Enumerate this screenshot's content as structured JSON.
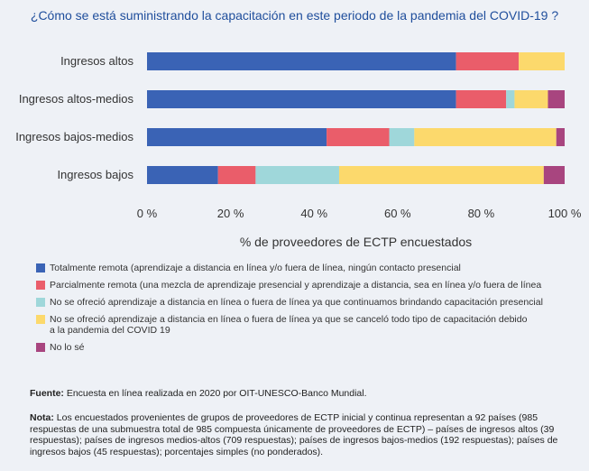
{
  "chart_data": {
    "type": "bar",
    "orientation": "horizontal",
    "stacked": true,
    "title": "¿Cómo se está suministrando la capacitación en este periodo de la pandemia del COVID-19 ?",
    "xlabel": "% de proveedores de ECTP encuestados",
    "ylabel": "",
    "xlim": [
      0,
      100
    ],
    "xticks": [
      0,
      20,
      40,
      60,
      80,
      100
    ],
    "xtick_labels": [
      "0 %",
      "20 %",
      "40 %",
      "60 %",
      "80 %",
      "100 %"
    ],
    "categories": [
      "Ingresos altos",
      "Ingresos altos-medios",
      "Ingresos bajos-medios",
      "Ingresos bajos"
    ],
    "series": [
      {
        "name": "Totalmente remota (aprendizaje a distancia en línea y/o fuera de línea, ningún contacto presencial",
        "color": "#3a63b5",
        "values": [
          74,
          74,
          43,
          17
        ]
      },
      {
        "name": "Parcialmente remota (una mezcla de aprendizaje presencial y aprendizaje a distancia, sea en línea y/o fuera de línea",
        "color": "#ea5d6a",
        "values": [
          15,
          12,
          15,
          9
        ]
      },
      {
        "name": "No se ofreció aprendizaje a distancia en línea o fuera de línea ya que continuamos brindando capacitación presencial",
        "color": "#9fd7da",
        "values": [
          0,
          2,
          6,
          20
        ]
      },
      {
        "name": "No se ofreció aprendizaje a distancia en línea o fuera de línea ya que se canceló todo tipo de capacitación debido a la pandemia del COVID 19",
        "color": "#fcd96c",
        "values": [
          11,
          8,
          34,
          49
        ]
      },
      {
        "name": "No lo sé",
        "color": "#a8457f",
        "values": [
          0,
          4,
          2,
          5
        ]
      }
    ],
    "legend_position": "bottom"
  },
  "legend_lines": [
    [
      "Totalmente remota (aprendizaje a distancia en línea y/o fuera de línea, ningún contacto presencial"
    ],
    [
      "Parcialmente remota (una mezcla de aprendizaje presencial y aprendizaje a distancia, sea en línea y/o fuera de línea"
    ],
    [
      "No se ofreció aprendizaje a distancia en línea o fuera de línea ya que continuamos brindando capacitación presencial"
    ],
    [
      "No se ofreció aprendizaje a distancia en línea o fuera de línea ya que se canceló todo tipo de capacitación debido",
      "a la pandemia del COVID 19"
    ],
    [
      "No lo sé"
    ]
  ],
  "source": {
    "label": "Fuente:",
    "text": " Encuesta en línea realizada en 2020 por OIT-UNESCO-Banco Mundial."
  },
  "note": {
    "label": "Nota:",
    "text": " Los encuestados provenientes de grupos de proveedores de ECTP inicial y continua representan a 92 países (985 respuestas de una submuestra total de 985 compuesta únicamente de proveedores de ECTP) – países de ingresos altos (39 respuestas); países de ingresos medios-altos (709 respuestas); países de ingresos bajos-medios (192 respuestas); países de ingresos bajos (45 respuestas); porcentajes simples (no ponderados)."
  }
}
